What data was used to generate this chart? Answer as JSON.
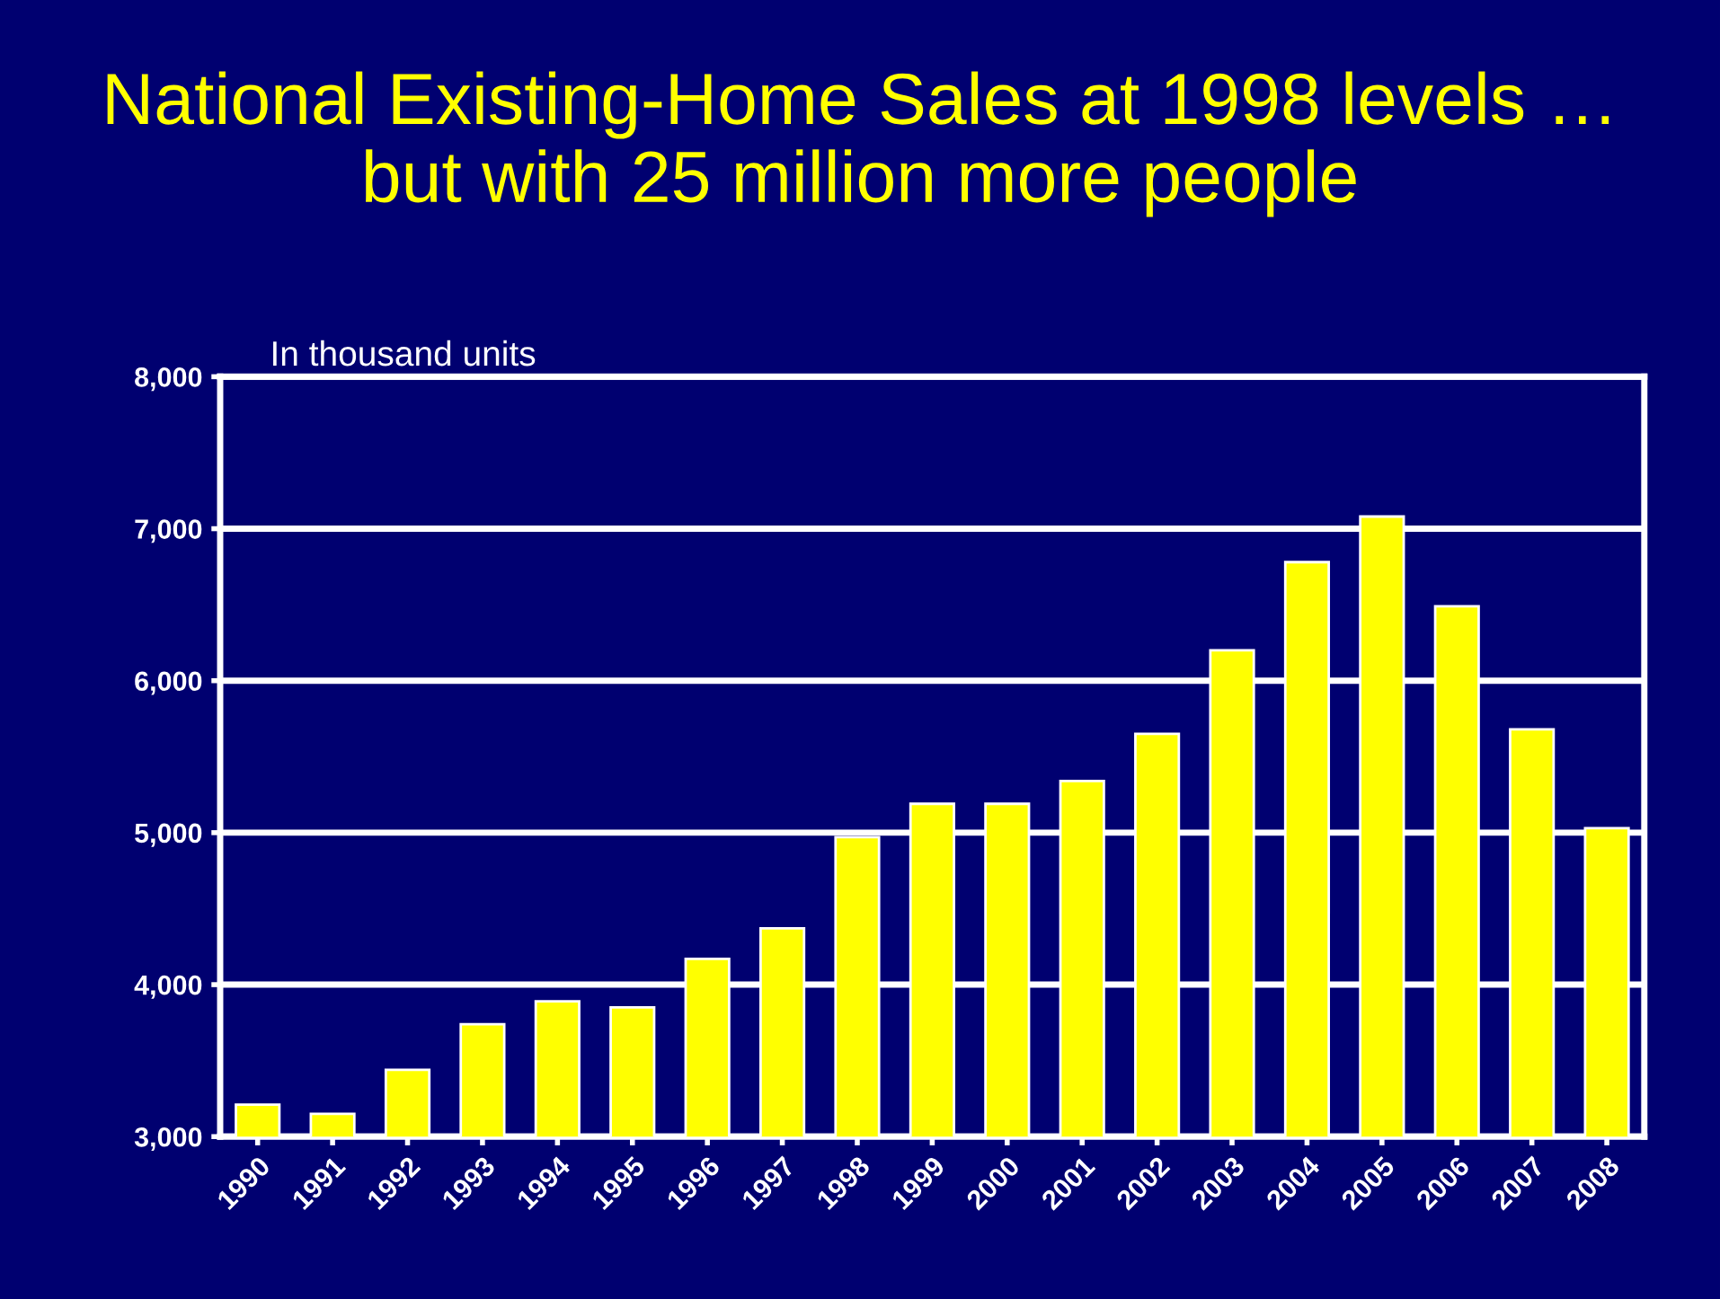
{
  "chart_data": {
    "type": "bar",
    "title": "National Existing-Home Sales at 1998 levels …\nbut with 25 million more people",
    "annotations": [
      "In thousand units"
    ],
    "categories": [
      "1990",
      "1991",
      "1992",
      "1993",
      "1994",
      "1995",
      "1996",
      "1997",
      "1998",
      "1999",
      "2000",
      "2001",
      "2002",
      "2003",
      "2004",
      "2005",
      "2006",
      "2007",
      "2008"
    ],
    "values": [
      3210,
      3150,
      3440,
      3740,
      3890,
      3850,
      4170,
      4370,
      4970,
      5190,
      5190,
      5340,
      5650,
      6200,
      6780,
      7080,
      6490,
      5680,
      5030
    ],
    "color": "#ffff00",
    "ylim": [
      3000,
      8000
    ],
    "yticks": [
      {
        "value": 3000,
        "label": "3,000"
      },
      {
        "value": 4000,
        "label": "4,000"
      },
      {
        "value": 5000,
        "label": "5,000"
      },
      {
        "value": 6000,
        "label": "6,000"
      },
      {
        "value": 7000,
        "label": "7,000"
      },
      {
        "value": 8000,
        "label": "8,000"
      }
    ],
    "grid": "y"
  }
}
